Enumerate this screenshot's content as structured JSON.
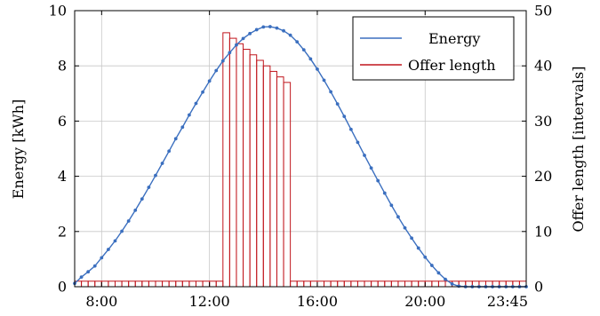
{
  "chart_data": {
    "type": "line+bar",
    "x_start_hour": 7,
    "x_end_hour": 23.75,
    "interval_minutes": 15,
    "x_ticks": [
      "8:00",
      "12:00",
      "16:00",
      "20:00",
      "23:45"
    ],
    "x_tick_hours": [
      8,
      12,
      16,
      20,
      23.75
    ],
    "yleft": {
      "label": "Energy [kWh]",
      "ylim": [
        0,
        10
      ],
      "ticks": [
        "0",
        "2",
        "4",
        "6",
        "8",
        "10"
      ]
    },
    "yright": {
      "label": "Offer length [intervals]",
      "ylim": [
        0,
        50
      ],
      "ticks": [
        "0",
        "10",
        "20",
        "30",
        "40",
        "50"
      ]
    },
    "grid": true,
    "legend": {
      "placement": "top-right",
      "entries": [
        {
          "name": "Energy",
          "color": "#3b6fbf"
        },
        {
          "name": "Offer length",
          "color": "#c0151c"
        }
      ]
    },
    "series": [
      {
        "name": "Energy",
        "axis": "left",
        "color": "#3b6fbf",
        "x": [
          "7:00",
          "7:15",
          "7:30",
          "7:45",
          "8:00",
          "8:15",
          "8:30",
          "8:45",
          "9:00",
          "9:15",
          "9:30",
          "9:45",
          "10:00",
          "10:15",
          "10:30",
          "10:45",
          "11:00",
          "11:15",
          "11:30",
          "11:45",
          "12:00",
          "12:15",
          "12:30",
          "12:45",
          "13:00",
          "13:15",
          "13:30",
          "13:45",
          "14:00",
          "14:15",
          "14:30",
          "14:45",
          "15:00",
          "15:15",
          "15:30",
          "15:45",
          "16:00",
          "16:15",
          "16:30",
          "16:45",
          "17:00",
          "17:15",
          "17:30",
          "17:45",
          "18:00",
          "18:15",
          "18:30",
          "18:45",
          "19:00",
          "19:15",
          "19:30",
          "19:45",
          "20:00",
          "20:15",
          "20:30",
          "20:45",
          "21:00",
          "21:15",
          "21:30",
          "21:45",
          "22:00",
          "22:15",
          "22:30",
          "22:45",
          "23:00",
          "23:15",
          "23:30",
          "23:45"
        ],
        "values": [
          0.12,
          0.35,
          0.54,
          0.75,
          1.05,
          1.35,
          1.66,
          2.01,
          2.38,
          2.77,
          3.18,
          3.6,
          4.03,
          4.47,
          4.91,
          5.36,
          5.78,
          6.22,
          6.64,
          7.05,
          7.45,
          7.83,
          8.18,
          8.48,
          8.76,
          8.99,
          9.17,
          9.31,
          9.41,
          9.42,
          9.37,
          9.27,
          9.11,
          8.87,
          8.58,
          8.25,
          7.88,
          7.48,
          7.06,
          6.62,
          6.17,
          5.7,
          5.23,
          4.76,
          4.3,
          3.84,
          3.39,
          2.95,
          2.53,
          2.13,
          1.76,
          1.4,
          1.07,
          0.77,
          0.5,
          0.27,
          0.1,
          0.02,
          0.0,
          0.0,
          0.0,
          0.0,
          0.0,
          0.0,
          0.0,
          0.0,
          0.0,
          0.0
        ]
      },
      {
        "name": "Offer length",
        "axis": "right",
        "color": "#c0151c",
        "x_start": "7:00",
        "values": [
          1,
          1,
          1,
          1,
          1,
          1,
          1,
          1,
          1,
          1,
          1,
          1,
          1,
          1,
          1,
          1,
          1,
          1,
          1,
          1,
          1,
          1,
          46,
          45,
          44,
          43,
          42,
          41,
          40,
          39,
          38,
          37,
          1,
          1,
          1,
          1,
          1,
          1,
          1,
          1,
          1,
          1,
          1,
          1,
          1,
          1,
          1,
          1,
          1,
          1,
          1,
          1,
          1,
          1,
          1,
          1,
          1,
          1,
          1,
          1,
          1,
          1,
          1,
          1,
          1,
          1,
          1
        ]
      }
    ]
  }
}
